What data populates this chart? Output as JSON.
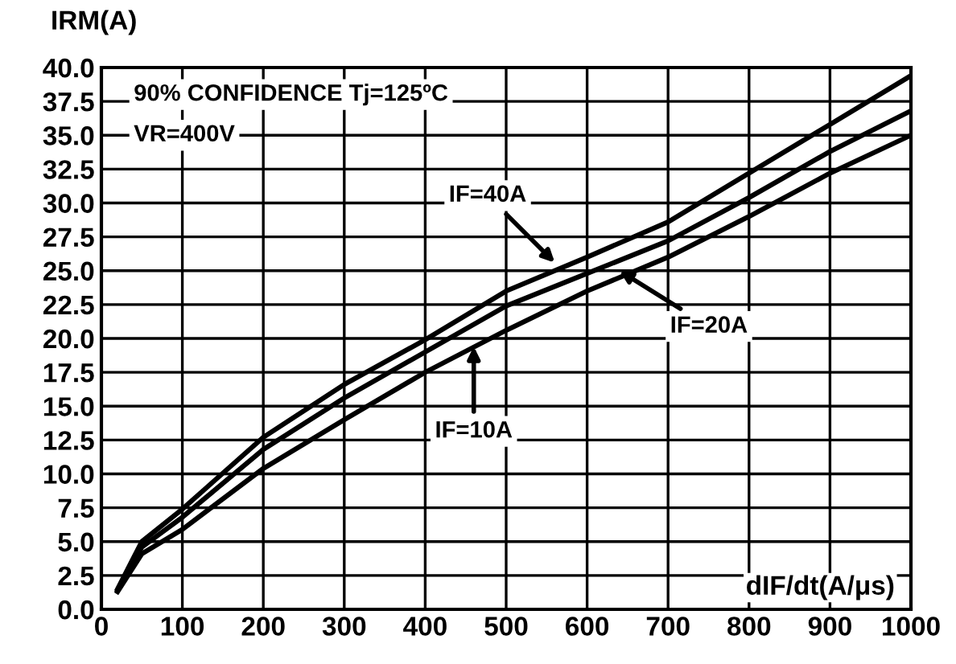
{
  "chart_data": {
    "type": "line",
    "xlabel": "dIF/dt(A/μs)",
    "ylabel": "IRM(A)",
    "x": [
      20,
      50,
      100,
      200,
      300,
      400,
      500,
      600,
      700,
      800,
      900,
      1000
    ],
    "series": [
      {
        "color": "#000000",
        "values": [
          1.5,
          5.0,
          7.4,
          12.7,
          16.6,
          19.9,
          23.5,
          26.0,
          28.6,
          32.2,
          35.8,
          39.4
        ]
      },
      {
        "color": "#000000",
        "values": [
          1.4,
          4.6,
          6.8,
          11.8,
          15.6,
          19.0,
          22.4,
          24.8,
          27.2,
          30.4,
          33.8,
          36.8
        ]
      },
      {
        "color": "#000000",
        "values": [
          1.3,
          4.1,
          5.9,
          10.4,
          14.0,
          17.5,
          20.6,
          23.5,
          26.0,
          29.0,
          32.2,
          35.0
        ]
      }
    ],
    "xlim": [
      0,
      1000
    ],
    "xticks": [
      0,
      100,
      200,
      300,
      400,
      500,
      600,
      700,
      800,
      900,
      1000
    ],
    "ylim": [
      0,
      40
    ],
    "yticks": [
      {
        "value": 0,
        "label": "0.0"
      },
      {
        "value": 2.5,
        "label": "2.5"
      },
      {
        "value": 5,
        "label": "5.0"
      },
      {
        "value": 7.5,
        "label": "7.5"
      },
      {
        "value": 10,
        "label": "10.0"
      },
      {
        "value": 12.5,
        "label": "12.5"
      },
      {
        "value": 15,
        "label": "15.0"
      },
      {
        "value": 17.5,
        "label": "17.5"
      },
      {
        "value": 20,
        "label": "20.0"
      },
      {
        "value": 22.5,
        "label": "22.5"
      },
      {
        "value": 25,
        "label": "25.0"
      },
      {
        "value": 27.5,
        "label": "27.5"
      },
      {
        "value": 30,
        "label": "30.0"
      },
      {
        "value": 32.5,
        "label": "32.5"
      },
      {
        "value": 35,
        "label": "35.0"
      },
      {
        "value": 37.5,
        "label": "37.5"
      },
      {
        "value": 40,
        "label": "40.0"
      }
    ],
    "grid": true,
    "annotations": [
      "90% CONFIDENCE Tj=125ºC",
      "VR=400V",
      {
        "text": "IF=40A",
        "x": 560,
        "y": 25.6
      },
      {
        "text": "IF=20A",
        "x": 640,
        "y": 25.0
      },
      {
        "text": "IF=10A",
        "x": 460,
        "y": 19.4
      }
    ]
  }
}
